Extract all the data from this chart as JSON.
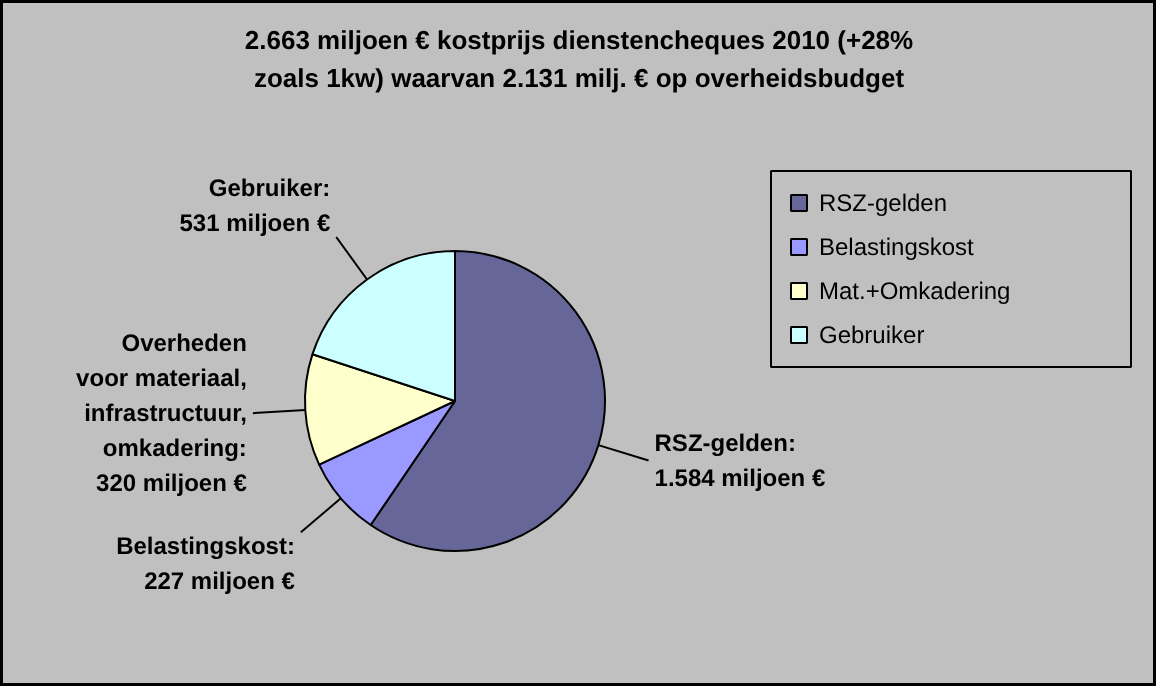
{
  "chart_data": {
    "type": "pie",
    "title": "2.663 miljoen € kostprijs dienstencheques 2010 (+28% zoals 1kw) waarvan 2.131 milj. € op overheidsbudget",
    "categories": [
      "RSZ-gelden",
      "Belastingskost",
      "Mat.+Omkadering",
      "Gebruiker"
    ],
    "values": [
      1584,
      227,
      320,
      531
    ],
    "colors": [
      "#666699",
      "#9999ff",
      "#ffffcc",
      "#ccffff"
    ],
    "value_labels": [
      "RSZ-gelden:\n1.584 miljoen €",
      "Belastingskost:\n227 miljoen €",
      "Overheden\nvoor materiaal,\ninfrastructuur,\nomkadering:\n320 miljoen €",
      "Gebruiker:\n531 miljoen €"
    ],
    "legend": "right"
  }
}
